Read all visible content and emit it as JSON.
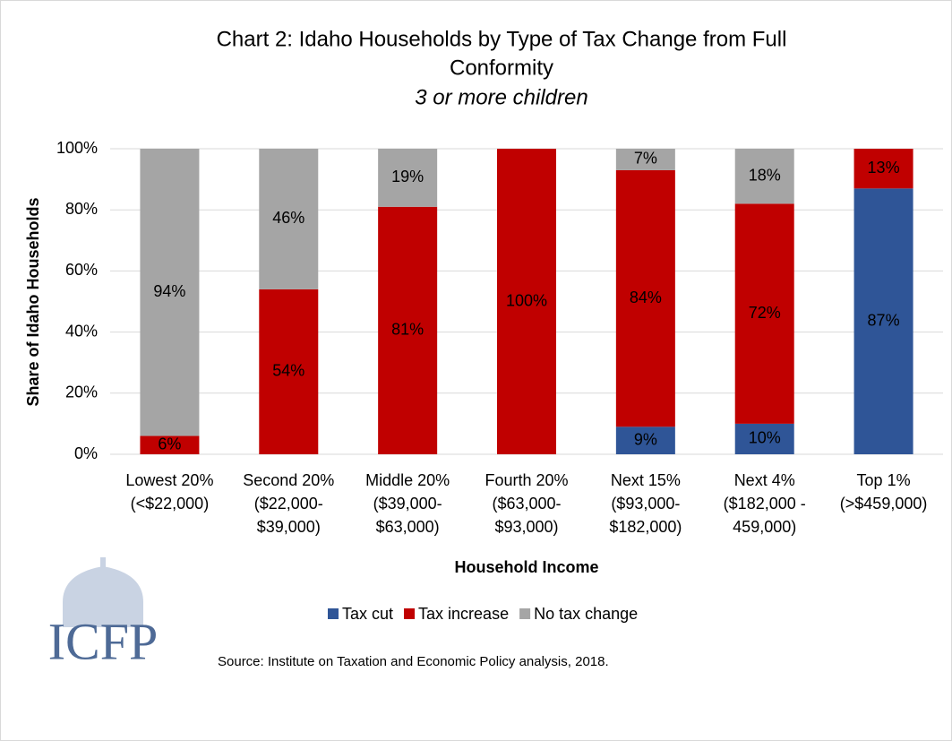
{
  "chart_data": {
    "type": "bar",
    "stacked": true,
    "title": [
      "Chart 2: Idaho Households by Type of Tax Change from Full",
      "Conformity"
    ],
    "subtitle": "3 or more children",
    "y_label": "Share of Idaho Households",
    "x_label": "Household Income",
    "categories": [
      [
        "Lowest 20%",
        "(<$22,000)"
      ],
      [
        "Second 20%",
        "($22,000-",
        "$39,000)"
      ],
      [
        "Middle 20%",
        "($39,000-",
        "$63,000)"
      ],
      [
        "Fourth 20%",
        "($63,000-",
        "$93,000)"
      ],
      [
        "Next 15%",
        "($93,000-",
        "$182,000)"
      ],
      [
        "Next 4%",
        "($182,000 -",
        "459,000)"
      ],
      [
        "Top 1%",
        "(>$459,000)"
      ]
    ],
    "series": [
      {
        "name": "Tax cut",
        "color": "#2f5597",
        "values": [
          0,
          0,
          0,
          0,
          9,
          10,
          87
        ],
        "value_labels": [
          null,
          null,
          null,
          null,
          "9%",
          "10%",
          "87%"
        ]
      },
      {
        "name": "Tax increase",
        "color": "#c00000",
        "values": [
          6,
          54,
          81,
          100,
          84,
          72,
          13
        ],
        "value_labels": [
          "6%",
          "54%",
          "81%",
          "100%",
          "84%",
          "72%",
          "13%"
        ]
      },
      {
        "name": "No tax change",
        "color": "#a5a5a5",
        "values": [
          94,
          46,
          19,
          0,
          7,
          18,
          0
        ],
        "value_labels": [
          "94%",
          "46%",
          "19%",
          null,
          "7%",
          "18%",
          null
        ]
      }
    ],
    "ylim": [
      0,
      100
    ],
    "yticks": [
      {
        "value": 0,
        "label": "0%"
      },
      {
        "value": 20,
        "label": "20%"
      },
      {
        "value": 40,
        "label": "40%"
      },
      {
        "value": 60,
        "label": "60%"
      },
      {
        "value": 80,
        "label": "80%"
      },
      {
        "value": 100,
        "label": "100%"
      }
    ],
    "grid": true,
    "legend": "bottom",
    "source": "Source: Institute on Taxation and Economic Policy analysis, 2018.",
    "logo_text": "ICFP"
  }
}
